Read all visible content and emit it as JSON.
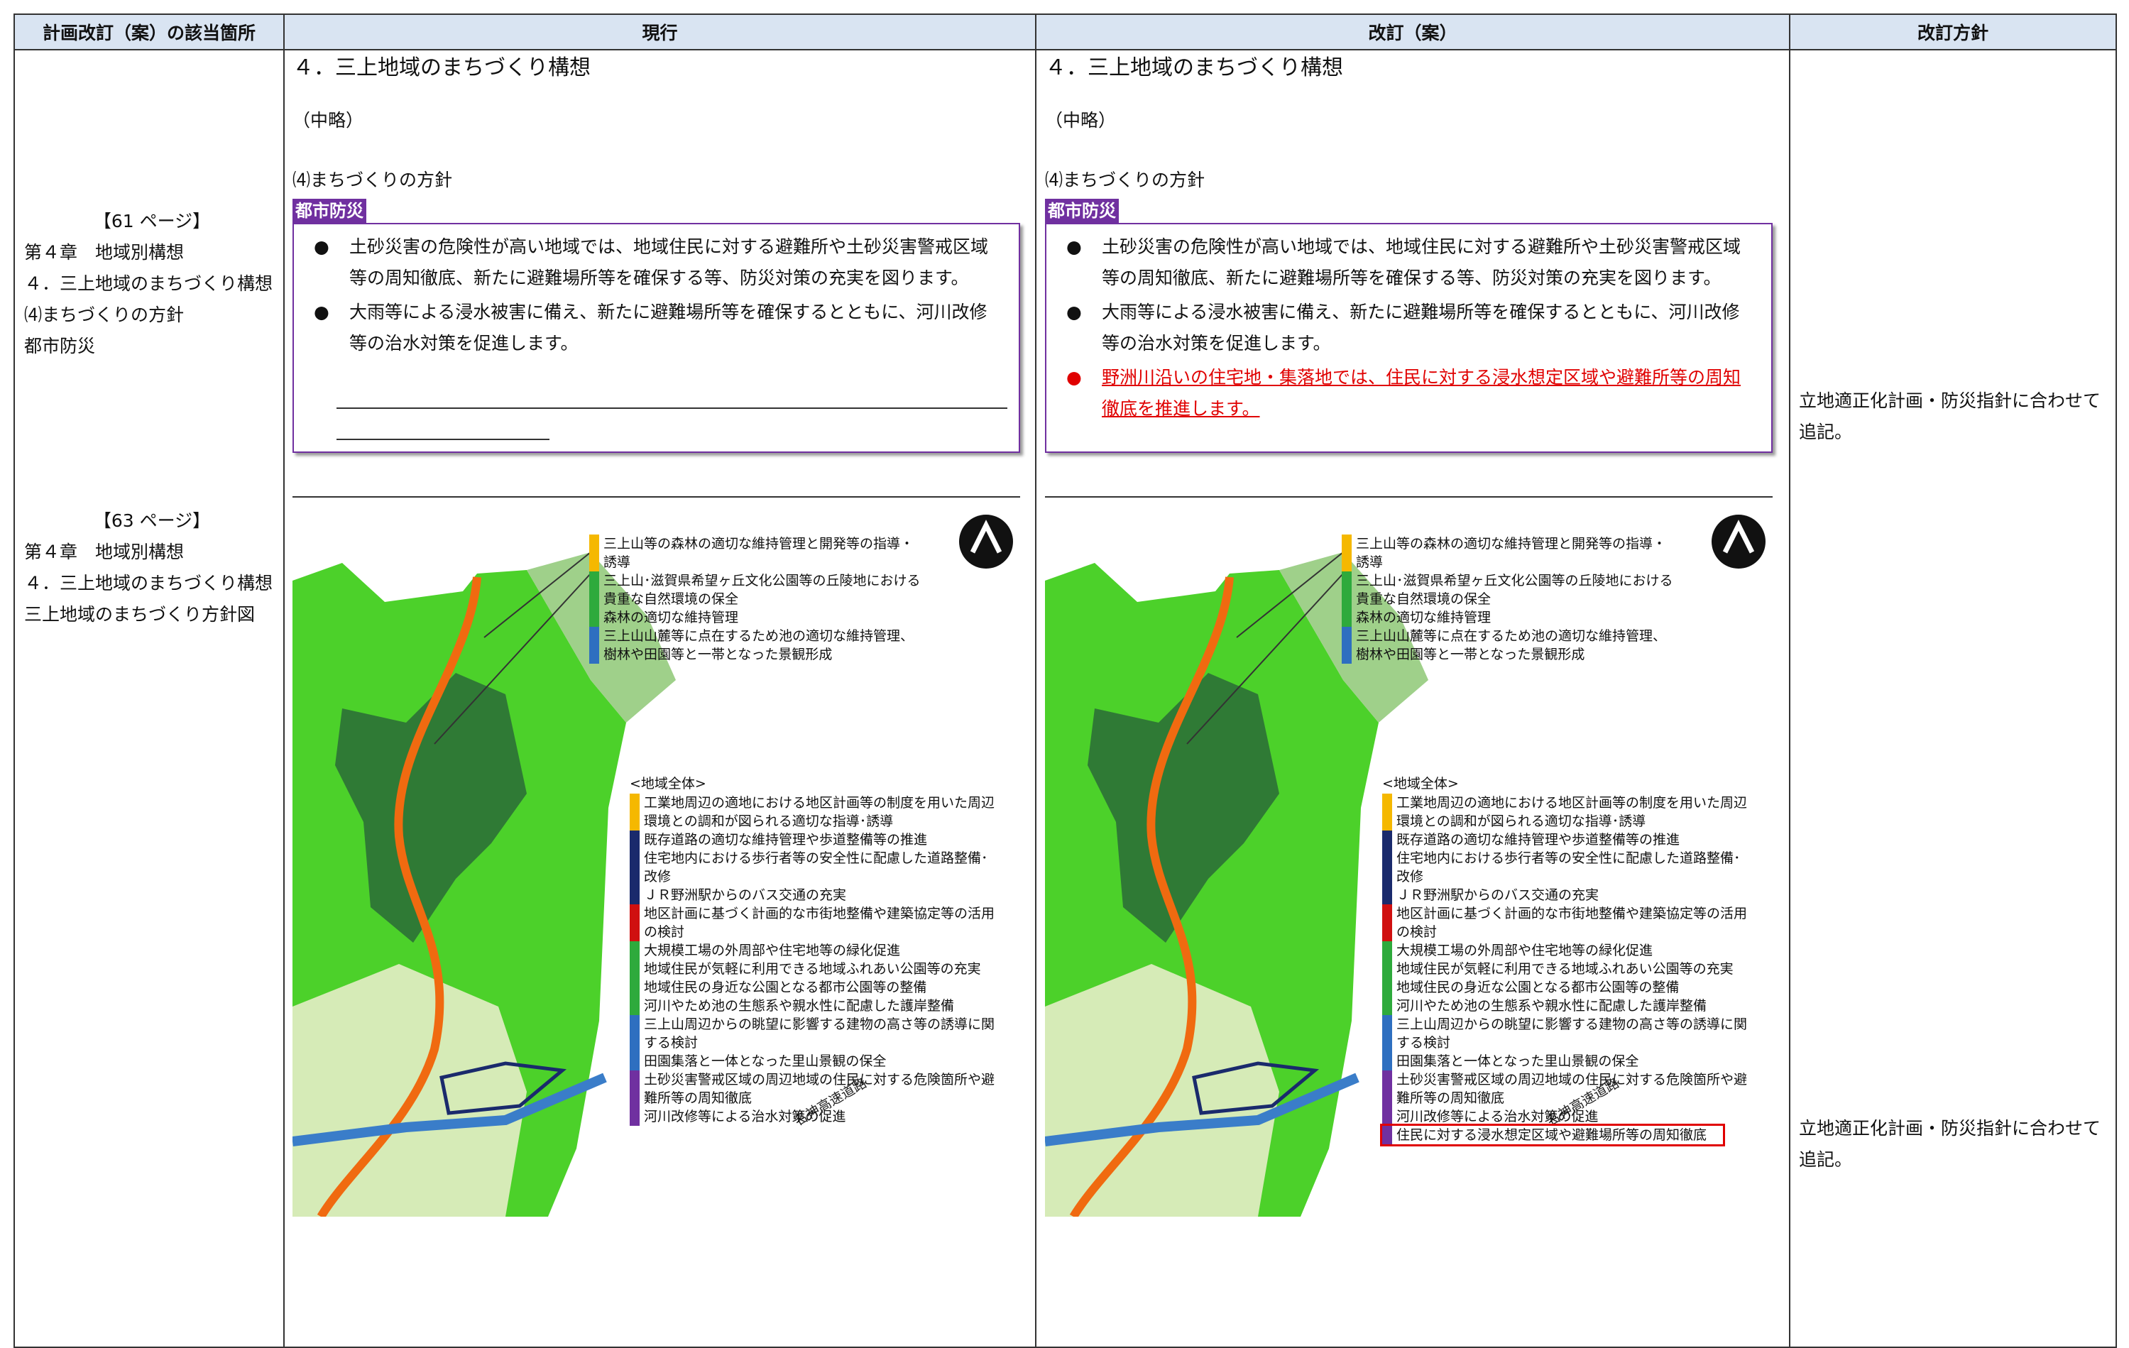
{
  "table": {
    "headers": [
      "計画改訂（案）の該当箇所",
      "現行",
      "改訂（案）",
      "改訂方針"
    ],
    "rows": [
      {
        "location": [
          "【61 ページ】",
          "第４章　地域別構想",
          "４．三上地域のまちづくり構想",
          "⑷まちづくりの方針",
          "都市防災"
        ],
        "current": {
          "heading": "４．三上地域のまちづくり構想",
          "omitted": "（中略）",
          "subheading": "⑷まちづくりの方針",
          "tag": "都市防災",
          "bullets": [
            "土砂災害の危険性が高い地域では、地域住民に対する避難所や土砂災害警戒区域等の周知徹底、新たに避難場所等を確保する等、防災対策の充実を図ります。",
            "大雨等による浸水被害に備え、新たに避難場所等を確保するとともに、河川改修等の治水対策を促進します。"
          ]
        },
        "revised": {
          "heading": "４．三上地域のまちづくり構想",
          "omitted": "（中略）",
          "subheading": "⑷まちづくりの方針",
          "tag": "都市防災",
          "bullets": [
            "土砂災害の危険性が高い地域では、地域住民に対する避難所や土砂災害警戒区域等の周知徹底、新たに避難場所等を確保する等、防災対策の充実を図ります。",
            "大雨等による浸水被害に備え、新たに避難場所等を確保するとともに、河川改修等の治水対策を促進します。"
          ],
          "added": "野洲川沿いの住宅地・集落地では、住民に対する浸水想定区域や避難所等の周知徹底を推進します。"
        },
        "policy": "立地適正化計画・防災指針に合わせて追記。"
      },
      {
        "location": [
          "【63 ページ】",
          "第４章　地域別構想",
          "４．三上地域のまちづくり構想",
          "三上地域のまちづくり方針図"
        ],
        "map": {
          "road": "名神高速道路",
          "area_title": "<地域全体>",
          "top_legend": [
            {
              "color": "#f5b800",
              "items": [
                "三上山等の森林の適切な維持管理と開発等の指導・誘導"
              ]
            },
            {
              "color": "#2eaa3c",
              "items": [
                "三上山･滋賀県希望ヶ丘文化公園等の丘陵地における貴重な自然環境の保全",
                "森林の適切な維持管理"
              ]
            },
            {
              "color": "#2e6fc0",
              "items": [
                "三上山山麓等に点在するため池の適切な維持管理、樹林や田園等と一帯となった景観形成"
              ]
            }
          ],
          "area_legend": [
            {
              "color": "#f5b800",
              "items": [
                "工業地周辺の適地における地区計画等の制度を用いた周辺環境との調和が図られる適切な指導･誘導"
              ]
            },
            {
              "color": "#1a2a6c",
              "items": [
                "既存道路の適切な維持管理や歩道整備等の推進",
                "住宅地内における歩行者等の安全性に配慮した道路整備･改修",
                "ＪＲ野洲駅からのバス交通の充実"
              ]
            },
            {
              "color": "#d01010",
              "items": [
                "地区計画に基づく計画的な市街地整備や建築協定等の活用の検討"
              ]
            },
            {
              "color": "#2eaa3c",
              "items": [
                "大規模工場の外周部や住宅地等の緑化促進",
                "地域住民が気軽に利用できる地域ふれあい公園等の充実",
                "地域住民の身近な公園となる都市公園等の整備",
                "河川やため池の生態系や親水性に配慮した護岸整備"
              ]
            },
            {
              "color": "#2e6fc0",
              "items": [
                "三上山周辺からの眺望に影響する建物の高さ等の誘導に関する検討",
                "田園集落と一体となった里山景観の保全"
              ]
            },
            {
              "color": "#7030a0",
              "items": [
                "土砂災害警戒区域の周辺地域の住民に対する危険箇所や避難所等の周知徹底",
                "河川改修等による治水対策の促進"
              ]
            }
          ],
          "added": "住民に対する浸水想定区域や避難場所等の周知徹底"
        },
        "policy": "立地適正化計画・防災指針に合わせて追記。"
      }
    ]
  }
}
